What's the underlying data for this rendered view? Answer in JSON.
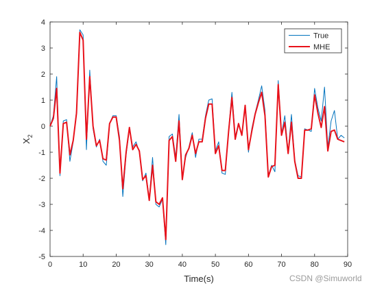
{
  "chart_data": {
    "type": "line",
    "xlabel": "Time(s)",
    "ylabel_main": "X",
    "ylabel_sub": "2",
    "xlim": [
      0,
      90
    ],
    "ylim": [
      -5,
      4
    ],
    "xticks": [
      0,
      10,
      20,
      30,
      40,
      50,
      60,
      70,
      80,
      90
    ],
    "yticks": [
      -5,
      -4,
      -3,
      -2,
      -1,
      0,
      1,
      2,
      3,
      4
    ],
    "grid": false,
    "legend_position": "top-right",
    "series": [
      {
        "name": "True",
        "color": "#0072BD",
        "x": [
          0,
          1,
          2,
          3,
          4,
          5,
          6,
          7,
          8,
          9,
          10,
          11,
          12,
          13,
          14,
          15,
          16,
          17,
          18,
          19,
          20,
          21,
          22,
          23,
          24,
          25,
          26,
          27,
          28,
          29,
          30,
          31,
          32,
          33,
          34,
          35,
          36,
          37,
          38,
          39,
          40,
          41,
          42,
          43,
          44,
          45,
          46,
          47,
          48,
          49,
          50,
          51,
          52,
          53,
          54,
          55,
          56,
          57,
          58,
          59,
          60,
          61,
          62,
          63,
          64,
          65,
          66,
          67,
          68,
          69,
          70,
          71,
          72,
          73,
          74,
          75,
          76,
          77,
          78,
          79,
          80,
          81,
          82,
          83,
          84,
          85,
          86,
          87,
          88,
          89
        ],
        "y": [
          0,
          0.4,
          1.9,
          -1.9,
          0.2,
          0.25,
          -1.35,
          -0.6,
          0.6,
          3.7,
          3.5,
          -0.9,
          2.15,
          -0.1,
          -0.8,
          -0.5,
          -1.35,
          -1.5,
          0.1,
          0.4,
          0.4,
          -0.4,
          -2.7,
          -1.1,
          -0.1,
          -0.8,
          -0.6,
          -1.0,
          -2.1,
          -1.8,
          -2.8,
          -1.2,
          -3.0,
          -3.1,
          -2.8,
          -4.55,
          -0.4,
          -0.3,
          -1.2,
          0.45,
          -1.95,
          -1.2,
          -0.8,
          -0.25,
          -1.2,
          -0.5,
          -0.5,
          0.4,
          1.0,
          1.05,
          -0.95,
          -0.6,
          -1.8,
          -1.85,
          -0.15,
          1.3,
          -0.4,
          0.1,
          -0.3,
          0.7,
          -1.0,
          -0.1,
          0.5,
          1.0,
          1.55,
          0.6,
          -1.9,
          -1.5,
          -1.75,
          1.75,
          -0.3,
          0.4,
          -1.0,
          0.45,
          -1.3,
          -1.9,
          -1.95,
          -0.1,
          -0.15,
          -0.2,
          1.45,
          0.7,
          0.2,
          1.5,
          -0.8,
          0.2,
          0.6,
          -0.5,
          -0.35,
          -0.45
        ]
      },
      {
        "name": "MHE",
        "color": "#E8111A",
        "x": [
          0,
          1,
          2,
          3,
          4,
          5,
          6,
          7,
          8,
          9,
          10,
          11,
          12,
          13,
          14,
          15,
          16,
          17,
          18,
          19,
          20,
          21,
          22,
          23,
          24,
          25,
          26,
          27,
          28,
          29,
          30,
          31,
          32,
          33,
          34,
          35,
          36,
          37,
          38,
          39,
          40,
          41,
          42,
          43,
          44,
          45,
          46,
          47,
          48,
          49,
          50,
          51,
          52,
          53,
          54,
          55,
          56,
          57,
          58,
          59,
          60,
          61,
          62,
          63,
          64,
          65,
          66,
          67,
          68,
          69,
          70,
          71,
          72,
          73,
          74,
          75,
          76,
          77,
          78,
          79,
          80,
          81,
          82,
          83,
          84,
          85,
          86,
          87,
          88,
          89
        ],
        "y": [
          0,
          0.3,
          1.45,
          -1.8,
          0.1,
          0.15,
          -1.1,
          -0.55,
          0.5,
          3.6,
          3.3,
          -0.5,
          1.9,
          0.0,
          -0.75,
          -0.55,
          -1.25,
          -1.3,
          0.1,
          0.35,
          0.35,
          -0.55,
          -2.4,
          -1.0,
          -0.05,
          -0.9,
          -0.7,
          -0.95,
          -2.05,
          -1.9,
          -2.85,
          -1.5,
          -2.9,
          -3.0,
          -2.75,
          -4.35,
          -0.55,
          -0.4,
          -1.35,
          0.2,
          -2.05,
          -1.1,
          -0.85,
          -0.35,
          -1.05,
          -0.6,
          -0.6,
          0.3,
          0.85,
          0.85,
          -1.05,
          -0.75,
          -1.7,
          -1.7,
          -0.2,
          1.1,
          -0.5,
          0.1,
          -0.35,
          0.8,
          -0.9,
          -0.2,
          0.45,
          0.9,
          1.3,
          0.4,
          -1.95,
          -1.55,
          -1.5,
          1.6,
          -0.35,
          0.15,
          -1.05,
          0.15,
          -1.35,
          -2.0,
          -2.0,
          -0.15,
          -0.15,
          -0.1,
          1.2,
          0.5,
          -0.05,
          0.75,
          -0.95,
          -0.2,
          -0.15,
          -0.5,
          -0.55,
          -0.6
        ]
      }
    ]
  },
  "watermark": "CSDN @Simuworld"
}
